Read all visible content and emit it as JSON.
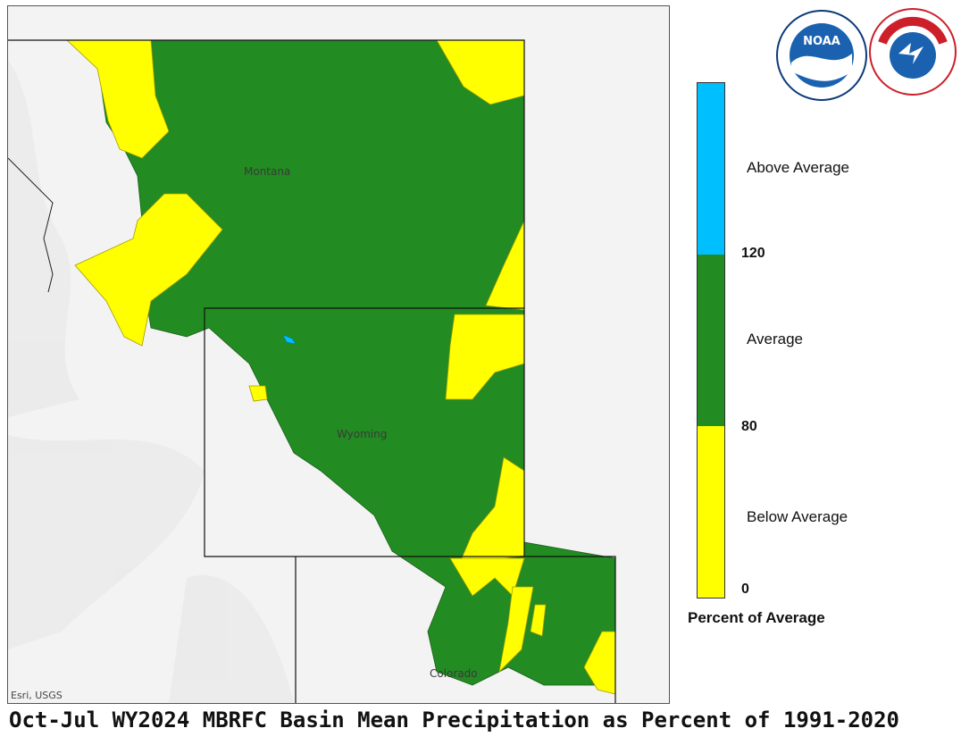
{
  "map": {
    "title": "Oct-Jul WY2024 MBRFC Basin Mean Precipitation as Percent of 1991-2020",
    "attribution": "Esri, USGS",
    "states": {
      "montana": "Montana",
      "wyoming": "Wyoming",
      "colorado": "Colorado"
    }
  },
  "logos": {
    "noaa": "NOAA",
    "nws": "NATIONAL WEATHER SERVICE"
  },
  "legend": {
    "title": "Percent of Average",
    "categories": [
      {
        "label": "Above Average",
        "color": "#00bfff",
        "range": "> 120"
      },
      {
        "label": "Average",
        "color": "#228b22",
        "range": "80 - 120"
      },
      {
        "label": "Below Average",
        "color": "#ffff00",
        "range": "0 - 80"
      }
    ],
    "ticks": [
      "120",
      "80",
      "0"
    ]
  },
  "colors": {
    "average": "#228b22",
    "below": "#ffff00",
    "above": "#00bfff",
    "background": "#f3f3f3"
  }
}
